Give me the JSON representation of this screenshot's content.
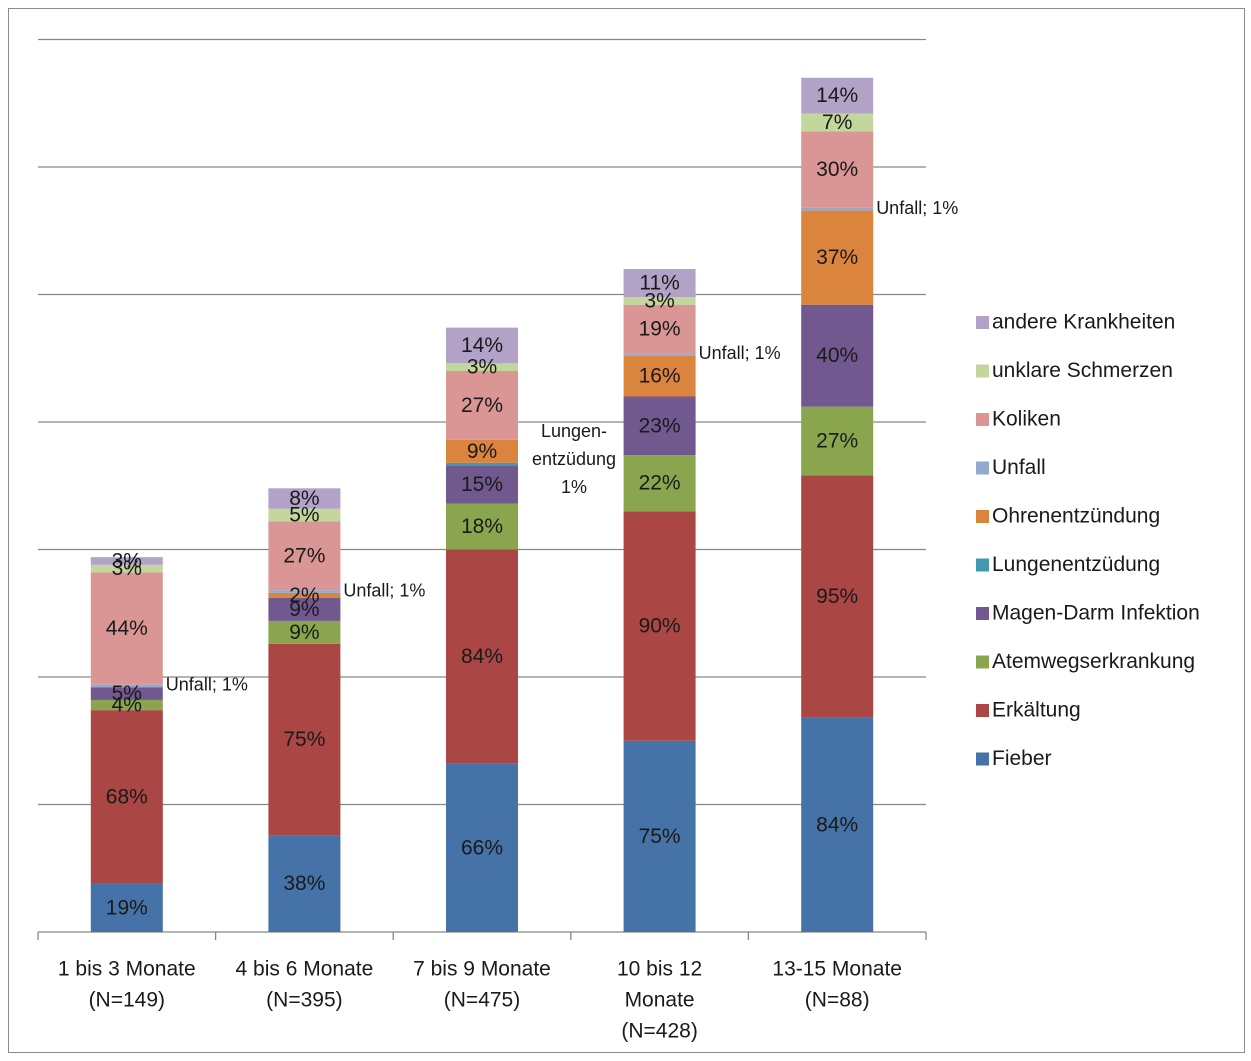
{
  "chart_data": {
    "type": "bar",
    "stacked": true,
    "title": "",
    "xlabel": "",
    "ylabel": "",
    "grid": true,
    "legend_position": "right",
    "categories": [
      [
        "1 bis 3 Monate",
        "(N=149)"
      ],
      [
        "4 bis 6 Monate",
        "(N=395)"
      ],
      [
        "7 bis 9 Monate",
        "(N=475)"
      ],
      [
        "10 bis 12",
        "Monate",
        "(N=428)"
      ],
      [
        "13-15 Monate",
        "(N=88)"
      ]
    ],
    "ylim": [
      0,
      350
    ],
    "series": [
      {
        "name": "Fieber",
        "color": "#4572A7",
        "values": [
          19,
          38,
          66,
          75,
          84
        ]
      },
      {
        "name": "Erkältung",
        "color": "#AA4643",
        "values": [
          68,
          75,
          84,
          90,
          95
        ]
      },
      {
        "name": "Atemwegserkrankung",
        "color": "#89A54E",
        "values": [
          4,
          9,
          18,
          22,
          27
        ]
      },
      {
        "name": "Magen-Darm Infektion",
        "color": "#71588F",
        "values": [
          5,
          9,
          15,
          23,
          40
        ]
      },
      {
        "name": "Lungenentzüdung",
        "color": "#4198AF",
        "values": [
          0,
          0,
          1,
          0,
          0
        ]
      },
      {
        "name": "Ohrenentzündung",
        "color": "#DB843D",
        "values": [
          0,
          2,
          9,
          16,
          37
        ]
      },
      {
        "name": "Unfall",
        "color": "#93A9CF",
        "values": [
          1,
          1,
          0,
          1,
          1
        ]
      },
      {
        "name": "Koliken",
        "color": "#D99694",
        "values": [
          44,
          27,
          27,
          19,
          30
        ]
      },
      {
        "name": "unklare Schmerzen",
        "color": "#C3D69B",
        "values": [
          3,
          5,
          3,
          3,
          7
        ]
      },
      {
        "name": "andere Krankheiten",
        "color": "#B3A2C7",
        "values": [
          3,
          8,
          14,
          11,
          14
        ]
      }
    ],
    "labels": [
      [
        "19%",
        "68%",
        "4%",
        "5%",
        "",
        "",
        "Unfall; 1%",
        "44%",
        "3%",
        "3%"
      ],
      [
        "38%",
        "75%",
        "9%",
        "9%",
        "",
        "2%",
        "Unfall; 1%",
        "27%",
        "5%",
        "8%"
      ],
      [
        "66%",
        "84%",
        "18%",
        "15%",
        [
          "Lungen-",
          "entzüdung",
          "1%"
        ],
        "9%",
        "",
        "27%",
        "3%",
        "14%"
      ],
      [
        "75%",
        "90%",
        "22%",
        "23%",
        "",
        "16%",
        "Unfall; 1%",
        "19%",
        "3%",
        "11%"
      ],
      [
        "84%",
        "95%",
        "27%",
        "40%",
        "",
        "37%",
        "Unfall; 1%",
        "30%",
        "7%",
        "14%"
      ]
    ]
  }
}
